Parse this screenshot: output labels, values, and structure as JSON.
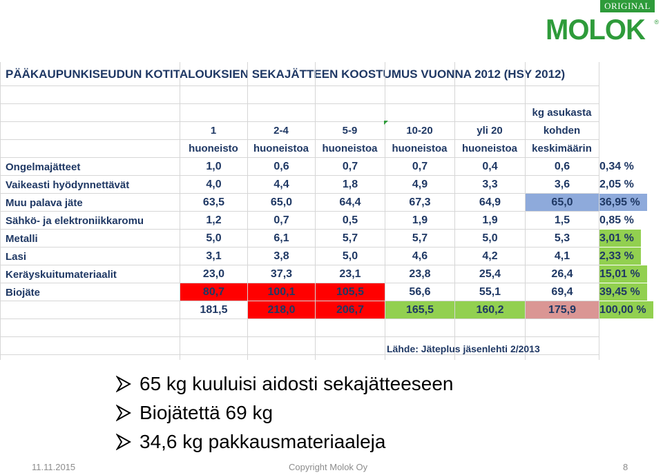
{
  "logo": {
    "badge": "ORIGINAL",
    "word": "MOLOK",
    "reg": "®"
  },
  "table": {
    "title": "PÄÄKAUPUNKISEUDUN KOTITALOUKSIEN SEKAJÄTTEEN KOOSTUMUS VUONNA 2012 (HSY 2012)",
    "headers": [
      {
        "line1": "",
        "line2": "1",
        "line3": "huoneisto"
      },
      {
        "line1": "",
        "line2": "2-4",
        "line3": "huoneistoa"
      },
      {
        "line1": "",
        "line2": "5-9",
        "line3": "huoneistoa"
      },
      {
        "line1": "",
        "line2": "10-20",
        "line3": "huoneistoa"
      },
      {
        "line1": "",
        "line2": "yli 20",
        "line3": "huoneistoa"
      },
      {
        "line1": "kg asukasta",
        "line2": "kohden",
        "line3": "keskimäärin"
      }
    ],
    "rows": [
      {
        "label": "Ongelmajätteet",
        "values": [
          "1,0",
          "0,6",
          "0,7",
          "0,7",
          "0,4",
          "0,6"
        ],
        "pct": "0,34 %"
      },
      {
        "label": "Vaikeasti hyödynnettävät",
        "values": [
          "4,0",
          "4,4",
          "1,8",
          "4,9",
          "3,3",
          "3,6"
        ],
        "pct": "2,05 %"
      },
      {
        "label": "Muu palava jäte",
        "values": [
          "63,5",
          "65,0",
          "64,4",
          "67,3",
          "64,9",
          "65,0"
        ],
        "pct": "36,95 %"
      },
      {
        "label": "Sähkö- ja elektroniikkaromu",
        "values": [
          "1,2",
          "0,7",
          "0,5",
          "1,9",
          "1,9",
          "1,5"
        ],
        "pct": "0,85 %"
      },
      {
        "label": "Metalli",
        "values": [
          "5,0",
          "6,1",
          "5,7",
          "5,7",
          "5,0",
          "5,3"
        ],
        "pct": "3,01 %"
      },
      {
        "label": "Lasi",
        "values": [
          "3,1",
          "3,8",
          "5,0",
          "4,6",
          "4,2",
          "4,1"
        ],
        "pct": "2,33 %"
      },
      {
        "label": "Keräyskuitumateriaalit",
        "values": [
          "23,0",
          "37,3",
          "23,1",
          "23,8",
          "25,4",
          "26,4"
        ],
        "pct": "15,01 %"
      },
      {
        "label": "Biojäte",
        "values": [
          "80,7",
          "100,1",
          "105,5",
          "56,6",
          "55,1",
          "69,4"
        ],
        "pct": "39,45 %"
      }
    ],
    "totals": {
      "values": [
        "181,5",
        "218,0",
        "206,7",
        "165,5",
        "160,2",
        "175,9"
      ],
      "pct": "100,00 %"
    },
    "source": "Lähde: Jäteplus jäsenlehti 2/2013",
    "colors": {
      "red": "#ff0000",
      "green": "#92d050",
      "blue": "#8eaadb",
      "pink": "#da9694",
      "text": "#1f3864"
    }
  },
  "bullets": [
    "65 kg kuuluisi aidosti sekajätteeseen",
    "Biojätettä 69 kg",
    "34,6 kg pakkausmateriaaleja"
  ],
  "footer": {
    "date": "11.11.2015",
    "copyright": "Copyright Molok Oy",
    "page": "8"
  }
}
